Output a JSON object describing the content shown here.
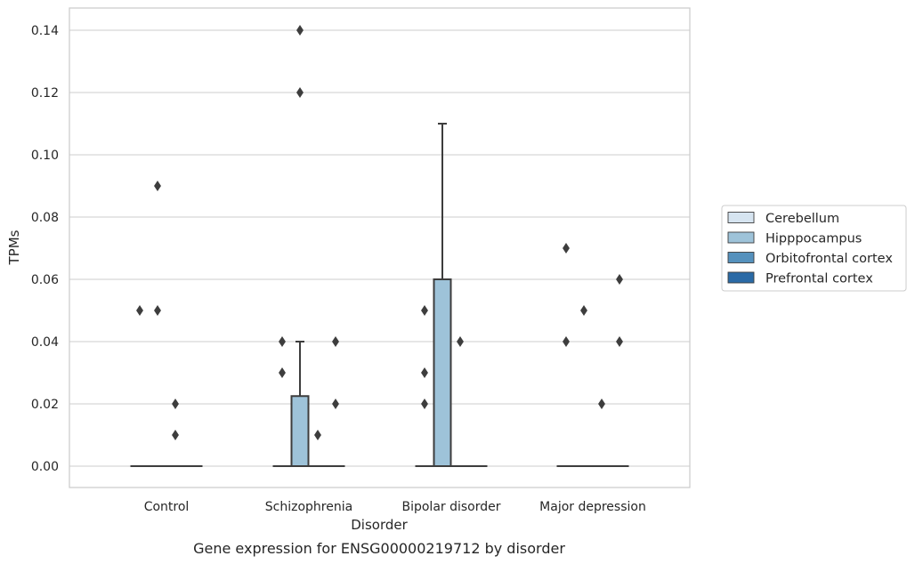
{
  "chart_data": {
    "type": "box",
    "title": "",
    "caption": "Gene expression for ENSG00000219712 by disorder",
    "xlabel": "Disorder",
    "ylabel": "TPMs",
    "ylim": [
      -0.007,
      0.147
    ],
    "yticks": [
      0.0,
      0.02,
      0.04,
      0.06,
      0.08,
      0.1,
      0.12,
      0.14
    ],
    "ytick_labels": [
      "0.00",
      "0.02",
      "0.04",
      "0.06",
      "0.08",
      "0.10",
      "0.12",
      "0.14"
    ],
    "grid": "horizontal",
    "legend_placement": "right",
    "categories": [
      "Control",
      "Schizophrenia",
      "Bipolar disorder",
      "Major depression"
    ],
    "series": [
      {
        "name": "Cerebellum",
        "color": "#d6e4f0",
        "boxes": [
          {
            "category": "Control",
            "q1": 0,
            "median": 0,
            "q3": 0,
            "whisker_low": 0,
            "whisker_high": 0,
            "outliers": [
              0.05
            ]
          },
          {
            "category": "Schizophrenia",
            "q1": 0,
            "median": 0,
            "q3": 0,
            "whisker_low": 0,
            "whisker_high": 0,
            "outliers": [
              0.04,
              0.03
            ]
          },
          {
            "category": "Bipolar disorder",
            "q1": 0,
            "median": 0,
            "q3": 0,
            "whisker_low": 0,
            "whisker_high": 0,
            "outliers": [
              0.05,
              0.03,
              0.02
            ]
          },
          {
            "category": "Major depression",
            "q1": 0,
            "median": 0,
            "q3": 0,
            "whisker_low": 0,
            "whisker_high": 0,
            "outliers": [
              0.07,
              0.04
            ]
          }
        ]
      },
      {
        "name": "Hipppocampus",
        "color": "#9ec3d9",
        "boxes": [
          {
            "category": "Control",
            "q1": 0,
            "median": 0,
            "q3": 0,
            "whisker_low": 0,
            "whisker_high": 0,
            "outliers": [
              0.09,
              0.05
            ]
          },
          {
            "category": "Schizophrenia",
            "q1": 0,
            "median": 0,
            "q3": 0.0225,
            "whisker_low": 0,
            "whisker_high": 0.04,
            "outliers": [
              0.14,
              0.12
            ]
          },
          {
            "category": "Bipolar disorder",
            "q1": 0,
            "median": 0,
            "q3": 0.06,
            "whisker_low": 0,
            "whisker_high": 0.11,
            "outliers": []
          },
          {
            "category": "Major depression",
            "q1": 0,
            "median": 0,
            "q3": 0,
            "whisker_low": 0,
            "whisker_high": 0,
            "outliers": [
              0.05
            ]
          }
        ]
      },
      {
        "name": "Orbitofrontal cortex",
        "color": "#5591bd",
        "boxes": [
          {
            "category": "Control",
            "q1": 0,
            "median": 0,
            "q3": 0,
            "whisker_low": 0,
            "whisker_high": 0,
            "outliers": [
              0.02,
              0.01
            ]
          },
          {
            "category": "Schizophrenia",
            "q1": 0,
            "median": 0,
            "q3": 0,
            "whisker_low": 0,
            "whisker_high": 0,
            "outliers": [
              0.01
            ]
          },
          {
            "category": "Bipolar disorder",
            "q1": 0,
            "median": 0,
            "q3": 0,
            "whisker_low": 0,
            "whisker_high": 0,
            "outliers": [
              0.04
            ]
          },
          {
            "category": "Major depression",
            "q1": 0,
            "median": 0,
            "q3": 0,
            "whisker_low": 0,
            "whisker_high": 0,
            "outliers": [
              0.02
            ]
          }
        ]
      },
      {
        "name": "Prefrontal cortex",
        "color": "#2a6aa6",
        "boxes": [
          {
            "category": "Control",
            "q1": 0,
            "median": 0,
            "q3": 0,
            "whisker_low": 0,
            "whisker_high": 0,
            "outliers": []
          },
          {
            "category": "Schizophrenia",
            "q1": 0,
            "median": 0,
            "q3": 0,
            "whisker_low": 0,
            "whisker_high": 0,
            "outliers": [
              0.04,
              0.02
            ]
          },
          {
            "category": "Bipolar disorder",
            "q1": 0,
            "median": 0,
            "q3": 0,
            "whisker_low": 0,
            "whisker_high": 0,
            "outliers": []
          },
          {
            "category": "Major depression",
            "q1": 0,
            "median": 0,
            "q3": 0,
            "whisker_low": 0,
            "whisker_high": 0,
            "outliers": [
              0.06,
              0.04
            ]
          }
        ]
      }
    ]
  }
}
